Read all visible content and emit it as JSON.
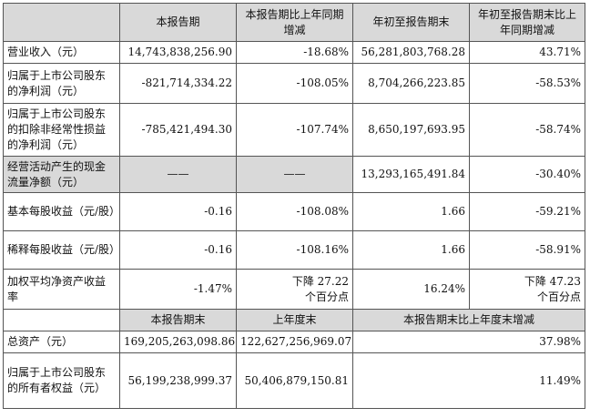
{
  "header": {
    "col1": "本报告期",
    "col2": "本报告期比上年同期增减",
    "col3": "年初至报告期末",
    "col4": "年初至报告期末比上年同期增减"
  },
  "rows": [
    {
      "label": "营业收入（元）",
      "v1": "14,743,838,256.90",
      "v2": "-18.68%",
      "v3": "56,281,803,768.28",
      "v4": "43.71%"
    },
    {
      "label": "归属于上市公司股东的净利润（元）",
      "v1": "-821,714,334.22",
      "v2": "-108.05%",
      "v3": "8,704,266,223.85",
      "v4": "-58.53%"
    },
    {
      "label": "归属于上市公司股东的扣除非经常性损益的净利润（元）",
      "v1": "-785,421,494.30",
      "v2": "-107.74%",
      "v3": "8,650,197,693.95",
      "v4": "-58.74%"
    },
    {
      "label": "经营活动产生的现金流量净额（元）",
      "v1": "——",
      "v2": "——",
      "v3": "13,293,165,491.84",
      "v4": "-30.40%"
    },
    {
      "label": "基本每股收益（元/股）",
      "v1": "-0.16",
      "v2": "-108.08%",
      "v3": "1.66",
      "v4": "-59.21%"
    },
    {
      "label": "稀释每股收益（元/股）",
      "v1": "-0.16",
      "v2": "-108.16%",
      "v3": "1.66",
      "v4": "-58.91%"
    },
    {
      "label": "加权平均净资产收益率",
      "v1": "-1.47%",
      "v2a": "下降 27.22",
      "v2b": "个百分点",
      "v3": "16.24%",
      "v4a": "下降 47.23",
      "v4b": "个百分点"
    }
  ],
  "header2": {
    "col1": "本报告期末",
    "col2": "上年度末",
    "col3": "本报告期末比上年度末增减"
  },
  "rows2": [
    {
      "label": "总资产（元）",
      "v1": "169,205,263,098.86",
      "v2": "122,627,256,969.07",
      "v3": "37.98%"
    },
    {
      "label": "归属于上市公司股东的所有者权益（元）",
      "v1": "56,199,238,999.37",
      "v2": "50,406,879,150.81",
      "v3": "11.49%"
    }
  ]
}
